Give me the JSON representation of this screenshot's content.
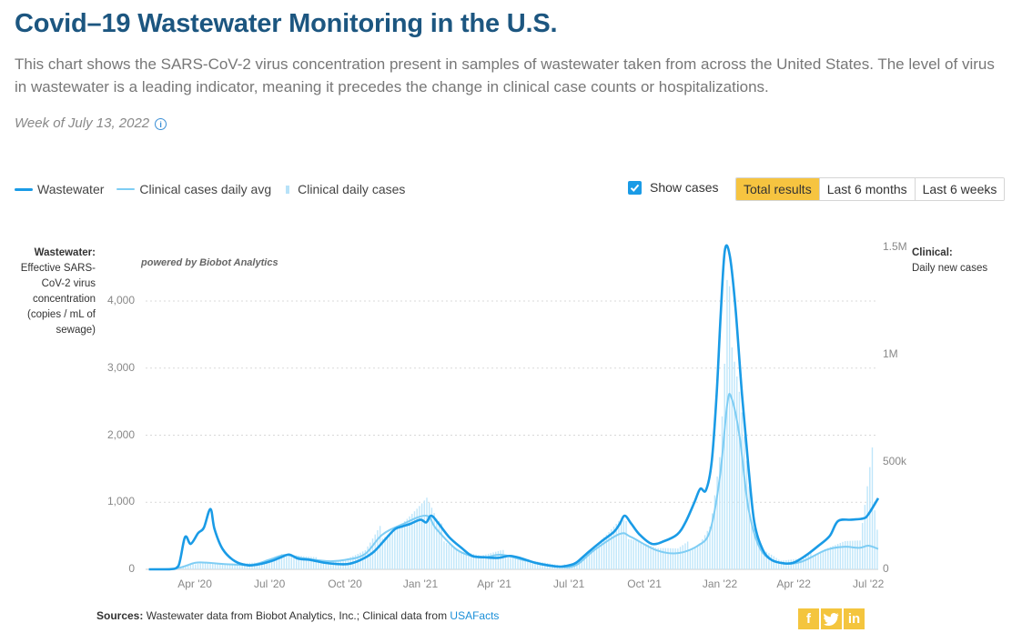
{
  "header": {
    "title": "Covid–19 Wastewater Monitoring in the U.S.",
    "subtitle": "This chart shows the SARS-CoV-2 virus concentration present in samples of wastewater taken from across the United States. The level of virus in wastewater is a leading indicator, meaning it precedes the change in clinical case counts or hospitalizations.",
    "week": "Week of July 13, 2022",
    "info_icon": "info-icon"
  },
  "legend": {
    "wastewater": "Wastewater",
    "clinical_avg": "Clinical cases daily avg",
    "clinical_daily": "Clinical daily cases"
  },
  "controls": {
    "show_cases_label": "Show cases",
    "show_cases_checked": true,
    "buttons": [
      {
        "label": "Total results",
        "active": true
      },
      {
        "label": "Last 6 months",
        "active": false
      },
      {
        "label": "Last 6 weeks",
        "active": false
      }
    ]
  },
  "axes": {
    "left_title": "Wastewater:",
    "left_desc": "Effective SARS-CoV-2 virus concentration (copies / mL of sewage)",
    "right_title": "Clinical:",
    "right_desc": "Daily new cases",
    "powered_by": "powered by Biobot Analytics"
  },
  "footer": {
    "sources_label": "Sources:",
    "sources_text": "Wastewater data from Biobot Analytics, Inc.; Clinical data from",
    "sources_link": "USAFacts",
    "social_icons": [
      "facebook-icon",
      "twitter-icon",
      "linkedin-icon"
    ]
  },
  "colors": {
    "wastewater": "#1a9be6",
    "clinical_avg": "#7ecdf4",
    "clinical_daily": "#bfe6fa",
    "active_button": "#f6c440",
    "title": "#1c5680"
  },
  "chart_data": {
    "type": "line",
    "grid": true,
    "x_start": "2020-02-01",
    "x_end": "2022-07-13",
    "x_ticks": [
      {
        "label": "Apr '20",
        "date": "2020-04-01"
      },
      {
        "label": "Jul '20",
        "date": "2020-07-01"
      },
      {
        "label": "Oct '20",
        "date": "2020-10-01"
      },
      {
        "label": "Jan '21",
        "date": "2021-01-01"
      },
      {
        "label": "Apr '21",
        "date": "2021-04-01"
      },
      {
        "label": "Jul '21",
        "date": "2021-07-01"
      },
      {
        "label": "Oct '21",
        "date": "2021-10-01"
      },
      {
        "label": "Jan '22",
        "date": "2022-01-01"
      },
      {
        "label": "Apr '22",
        "date": "2022-04-01"
      },
      {
        "label": "Jul '22",
        "date": "2022-07-01"
      }
    ],
    "y_left": {
      "min": 0,
      "max": 4800,
      "ticks": [
        {
          "v": 0,
          "label": "0"
        },
        {
          "v": 1000,
          "label": "1,000"
        },
        {
          "v": 2000,
          "label": "2,000"
        },
        {
          "v": 3000,
          "label": "3,000"
        },
        {
          "v": 4000,
          "label": "4,000"
        }
      ]
    },
    "y_right": {
      "min": 0,
      "max": 1500000,
      "ticks": [
        {
          "v": 0,
          "label": "0"
        },
        {
          "v": 500000,
          "label": "500k"
        },
        {
          "v": 1000000,
          "label": "1M"
        },
        {
          "v": 1500000,
          "label": "1.5M"
        }
      ]
    },
    "series": [
      {
        "name": "Wastewater",
        "axis": "left",
        "points": [
          [
            "2020-02-05",
            0
          ],
          [
            "2020-03-01",
            0
          ],
          [
            "2020-03-12",
            50
          ],
          [
            "2020-03-20",
            480
          ],
          [
            "2020-03-27",
            380
          ],
          [
            "2020-04-05",
            540
          ],
          [
            "2020-04-12",
            620
          ],
          [
            "2020-04-20",
            900
          ],
          [
            "2020-04-25",
            600
          ],
          [
            "2020-05-05",
            300
          ],
          [
            "2020-05-20",
            120
          ],
          [
            "2020-06-05",
            60
          ],
          [
            "2020-06-20",
            80
          ],
          [
            "2020-07-05",
            130
          ],
          [
            "2020-07-15",
            180
          ],
          [
            "2020-07-25",
            220
          ],
          [
            "2020-08-05",
            160
          ],
          [
            "2020-08-20",
            140
          ],
          [
            "2020-09-05",
            100
          ],
          [
            "2020-09-20",
            80
          ],
          [
            "2020-10-05",
            80
          ],
          [
            "2020-10-20",
            140
          ],
          [
            "2020-11-05",
            260
          ],
          [
            "2020-11-20",
            460
          ],
          [
            "2020-12-01",
            600
          ],
          [
            "2020-12-10",
            640
          ],
          [
            "2020-12-20",
            680
          ],
          [
            "2021-01-01",
            740
          ],
          [
            "2021-01-08",
            700
          ],
          [
            "2021-01-14",
            800
          ],
          [
            "2021-01-22",
            700
          ],
          [
            "2021-02-05",
            480
          ],
          [
            "2021-02-20",
            320
          ],
          [
            "2021-03-05",
            200
          ],
          [
            "2021-03-20",
            180
          ],
          [
            "2021-04-05",
            170
          ],
          [
            "2021-04-20",
            200
          ],
          [
            "2021-05-05",
            160
          ],
          [
            "2021-05-20",
            100
          ],
          [
            "2021-06-05",
            60
          ],
          [
            "2021-06-20",
            40
          ],
          [
            "2021-07-01",
            60
          ],
          [
            "2021-07-10",
            100
          ],
          [
            "2021-07-25",
            260
          ],
          [
            "2021-08-10",
            420
          ],
          [
            "2021-08-25",
            560
          ],
          [
            "2021-09-01",
            680
          ],
          [
            "2021-09-07",
            800
          ],
          [
            "2021-09-15",
            680
          ],
          [
            "2021-09-25",
            520
          ],
          [
            "2021-10-10",
            380
          ],
          [
            "2021-10-25",
            420
          ],
          [
            "2021-11-10",
            520
          ],
          [
            "2021-11-20",
            700
          ],
          [
            "2021-12-01",
            1000
          ],
          [
            "2021-12-08",
            1200
          ],
          [
            "2021-12-15",
            1180
          ],
          [
            "2021-12-22",
            1600
          ],
          [
            "2021-12-28",
            2600
          ],
          [
            "2022-01-02",
            3800
          ],
          [
            "2022-01-07",
            4750
          ],
          [
            "2022-01-13",
            4680
          ],
          [
            "2022-01-20",
            3900
          ],
          [
            "2022-01-28",
            2600
          ],
          [
            "2022-02-05",
            1500
          ],
          [
            "2022-02-12",
            700
          ],
          [
            "2022-02-22",
            300
          ],
          [
            "2022-03-05",
            140
          ],
          [
            "2022-03-20",
            90
          ],
          [
            "2022-04-01",
            100
          ],
          [
            "2022-04-15",
            200
          ],
          [
            "2022-05-01",
            350
          ],
          [
            "2022-05-15",
            500
          ],
          [
            "2022-05-25",
            720
          ],
          [
            "2022-06-10",
            740
          ],
          [
            "2022-06-25",
            760
          ],
          [
            "2022-07-01",
            820
          ],
          [
            "2022-07-13",
            1060
          ]
        ]
      },
      {
        "name": "Clinical cases daily avg",
        "axis": "right",
        "points": [
          [
            "2020-02-05",
            0
          ],
          [
            "2020-03-10",
            5000
          ],
          [
            "2020-04-01",
            30000
          ],
          [
            "2020-04-15",
            31000
          ],
          [
            "2020-05-10",
            24000
          ],
          [
            "2020-06-10",
            22000
          ],
          [
            "2020-07-01",
            45000
          ],
          [
            "2020-07-20",
            67000
          ],
          [
            "2020-08-10",
            52000
          ],
          [
            "2020-09-10",
            38000
          ],
          [
            "2020-10-01",
            44000
          ],
          [
            "2020-10-25",
            70000
          ],
          [
            "2020-11-15",
            160000
          ],
          [
            "2020-12-10",
            210000
          ],
          [
            "2021-01-08",
            250000
          ],
          [
            "2021-01-20",
            190000
          ],
          [
            "2021-02-15",
            90000
          ],
          [
            "2021-03-15",
            55000
          ],
          [
            "2021-04-10",
            68000
          ],
          [
            "2021-05-10",
            40000
          ],
          [
            "2021-06-20",
            12000
          ],
          [
            "2021-07-10",
            20000
          ],
          [
            "2021-08-01",
            90000
          ],
          [
            "2021-09-01",
            165000
          ],
          [
            "2021-09-15",
            150000
          ],
          [
            "2021-10-15",
            90000
          ],
          [
            "2021-11-10",
            75000
          ],
          [
            "2021-12-05",
            110000
          ],
          [
            "2021-12-20",
            180000
          ],
          [
            "2022-01-01",
            430000
          ],
          [
            "2022-01-10",
            770000
          ],
          [
            "2022-01-15",
            800000
          ],
          [
            "2022-01-25",
            620000
          ],
          [
            "2022-02-05",
            280000
          ],
          [
            "2022-02-20",
            90000
          ],
          [
            "2022-03-15",
            30000
          ],
          [
            "2022-04-10",
            35000
          ],
          [
            "2022-05-10",
            90000
          ],
          [
            "2022-06-01",
            105000
          ],
          [
            "2022-06-20",
            100000
          ],
          [
            "2022-07-01",
            110000
          ],
          [
            "2022-07-13",
            95000
          ]
        ]
      },
      {
        "name": "Clinical daily cases",
        "axis": "right",
        "points": [
          [
            "2020-02-05",
            0
          ],
          [
            "2020-03-10",
            6000
          ],
          [
            "2020-04-05",
            34000
          ],
          [
            "2020-04-20",
            32000
          ],
          [
            "2020-05-15",
            26000
          ],
          [
            "2020-06-15",
            26000
          ],
          [
            "2020-07-15",
            75000
          ],
          [
            "2020-08-10",
            55000
          ],
          [
            "2020-09-10",
            40000
          ],
          [
            "2020-10-01",
            48000
          ],
          [
            "2020-10-25",
            80000
          ],
          [
            "2020-11-15",
            180000
          ],
          [
            "2020-12-10",
            230000
          ],
          [
            "2021-01-08",
            300000
          ],
          [
            "2021-01-20",
            200000
          ],
          [
            "2021-02-15",
            95000
          ],
          [
            "2021-03-15",
            60000
          ],
          [
            "2021-04-10",
            75000
          ],
          [
            "2021-05-10",
            45000
          ],
          [
            "2021-06-20",
            15000
          ],
          [
            "2021-07-10",
            30000
          ],
          [
            "2021-08-01",
            110000
          ],
          [
            "2021-09-01",
            200000
          ],
          [
            "2021-09-15",
            170000
          ],
          [
            "2021-10-15",
            100000
          ],
          [
            "2021-11-10",
            85000
          ],
          [
            "2021-12-05",
            130000
          ],
          [
            "2021-12-20",
            220000
          ],
          [
            "2022-01-01",
            550000
          ],
          [
            "2022-01-07",
            1000000
          ],
          [
            "2022-01-10",
            1420000
          ],
          [
            "2022-01-15",
            950000
          ],
          [
            "2022-01-25",
            700000
          ],
          [
            "2022-02-05",
            320000
          ],
          [
            "2022-02-20",
            110000
          ],
          [
            "2022-03-15",
            40000
          ],
          [
            "2022-04-10",
            45000
          ],
          [
            "2022-05-10",
            110000
          ],
          [
            "2022-06-01",
            130000
          ],
          [
            "2022-06-20",
            120000
          ],
          [
            "2022-07-05",
            470000
          ],
          [
            "2022-07-13",
            150000
          ]
        ]
      }
    ]
  }
}
